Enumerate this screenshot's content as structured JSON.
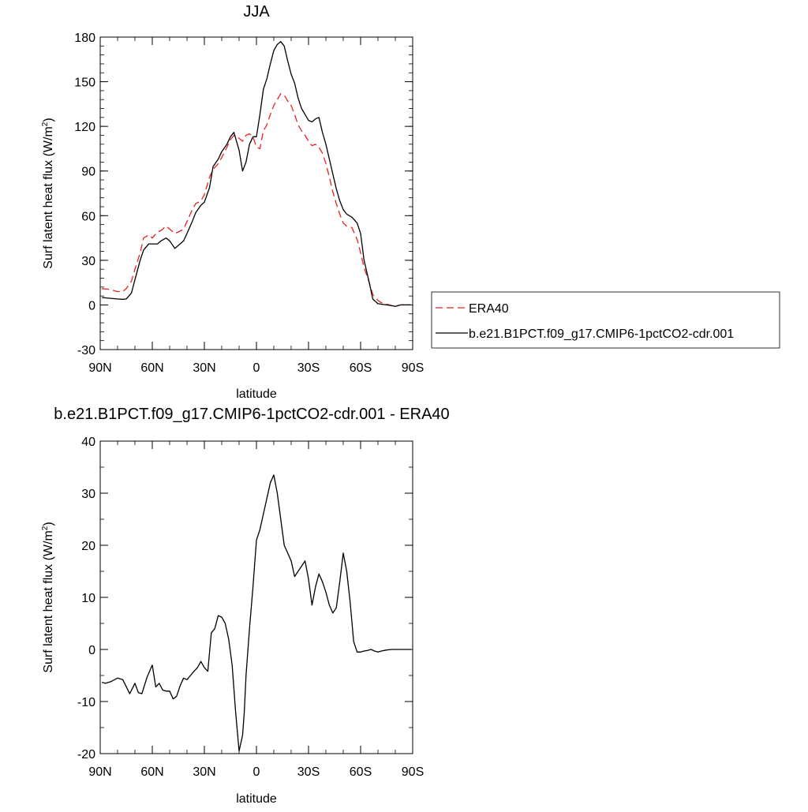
{
  "chart_data": [
    {
      "type": "line",
      "title": "JJA",
      "xlabel": "latitude",
      "ylabel": "Surf latent heat flux (W/m",
      "ylabel_sup": "2",
      "ylabel_close": ")",
      "xlim": [
        90,
        -90
      ],
      "ylim": [
        -30,
        180
      ],
      "x_ticks": [
        90,
        60,
        30,
        0,
        -30,
        -60,
        -90
      ],
      "x_tick_labels": [
        "90N",
        "60N",
        "30N",
        "0",
        "30S",
        "60S",
        "90S"
      ],
      "y_ticks": [
        -30,
        0,
        30,
        60,
        90,
        120,
        150,
        180
      ],
      "y_tick_labels": [
        "-30",
        "0",
        "30",
        "60",
        "90",
        "120",
        "150",
        "180"
      ],
      "legend_position": "right",
      "series": [
        {
          "name": "ERA40",
          "color": "#e8201e",
          "dash": "dashed",
          "x": [
            89,
            85,
            80,
            77,
            75,
            72,
            70,
            67,
            65,
            62,
            60,
            57,
            55,
            52,
            50,
            47,
            45,
            42,
            40,
            37,
            35,
            32,
            30,
            27,
            25,
            22,
            20,
            17,
            15,
            13,
            10,
            8,
            6,
            4,
            2,
            0,
            -2,
            -4,
            -6,
            -8,
            -10,
            -12,
            -14,
            -16,
            -18,
            -20,
            -22,
            -24,
            -26,
            -28,
            -30,
            -32,
            -34,
            -36,
            -38,
            -40,
            -42,
            -44,
            -46,
            -48,
            -50,
            -52,
            -55,
            -58,
            -60,
            -62,
            -65,
            -67,
            -70,
            -72,
            -75,
            -78,
            -80,
            -83,
            -86,
            -89
          ],
          "y": [
            11,
            10.5,
            9,
            9,
            11,
            16,
            24,
            35,
            45,
            47,
            45,
            49,
            50,
            53,
            51,
            48,
            49,
            51,
            56,
            64,
            68,
            70,
            74,
            86,
            91,
            95,
            99,
            106,
            111,
            114,
            112,
            110,
            114,
            115,
            113,
            106,
            105,
            117,
            121,
            128,
            134,
            138,
            142,
            141,
            137,
            134,
            128,
            121,
            117,
            114,
            110,
            107,
            108,
            106,
            102,
            95,
            86,
            76,
            68,
            61,
            55,
            53,
            52,
            44,
            35,
            25,
            15,
            7,
            3,
            1.5,
            0.5,
            -0.5,
            -1,
            0,
            0,
            0
          ]
        },
        {
          "name": "b.e21.B1PCT.f09_g17.CMIP6-1pctCO2-cdr.001",
          "color": "#000000",
          "dash": "solid",
          "x": [
            89,
            85,
            80,
            77,
            75,
            72,
            70,
            67,
            65,
            62,
            60,
            57,
            55,
            52,
            50,
            47,
            45,
            42,
            40,
            37,
            35,
            32,
            30,
            27,
            25,
            22,
            20,
            17,
            15,
            13,
            10,
            8,
            6,
            4,
            2,
            0,
            -2,
            -4,
            -6,
            -8,
            -10,
            -12,
            -14,
            -16,
            -18,
            -20,
            -22,
            -24,
            -26,
            -28,
            -30,
            -32,
            -34,
            -36,
            -38,
            -40,
            -42,
            -44,
            -46,
            -48,
            -50,
            -52,
            -55,
            -58,
            -60,
            -62,
            -65,
            -67,
            -70,
            -72,
            -75,
            -78,
            -80,
            -83,
            -86,
            -89
          ],
          "y": [
            5,
            4.5,
            4,
            3.8,
            4,
            8,
            17,
            30,
            37,
            41,
            41,
            41,
            43,
            45,
            43,
            38,
            40,
            43,
            48,
            56,
            62,
            67,
            69,
            79,
            93,
            98,
            103,
            108,
            113,
            116,
            104,
            90,
            96,
            108,
            113,
            113,
            128,
            145,
            152,
            162,
            171,
            175,
            177,
            174,
            164,
            155,
            149,
            139,
            132,
            128,
            124,
            123,
            125,
            126,
            116,
            108,
            98,
            88,
            78,
            70,
            64,
            61,
            59,
            55,
            48,
            30,
            15,
            4,
            0.8,
            0.5,
            0,
            -0.5,
            -1,
            0,
            0,
            0
          ]
        }
      ]
    },
    {
      "type": "line",
      "title": "b.e21.B1PCT.f09_g17.CMIP6-1pctCO2-cdr.001 - ERA40",
      "xlabel": "latitude",
      "ylabel": "Surf latent heat flux (W/m",
      "ylabel_sup": "2",
      "ylabel_close": ")",
      "xlim": [
        90,
        -90
      ],
      "ylim": [
        -20,
        40
      ],
      "x_ticks": [
        90,
        60,
        30,
        0,
        -30,
        -60,
        -90
      ],
      "x_tick_labels": [
        "90N",
        "60N",
        "30N",
        "0",
        "30S",
        "60S",
        "90S"
      ],
      "y_ticks": [
        -20,
        -10,
        0,
        10,
        20,
        30,
        40
      ],
      "y_tick_labels": [
        "-20",
        "-10",
        "0",
        "10",
        "20",
        "30",
        "40"
      ],
      "series": [
        {
          "color": "#000000",
          "dash": "solid",
          "x": [
            89,
            87,
            84,
            80,
            77,
            73,
            70,
            68,
            66,
            63,
            60,
            58,
            56,
            54,
            52,
            50,
            48,
            46,
            44,
            42,
            40,
            38,
            36,
            34,
            32,
            30,
            28,
            26,
            24,
            22,
            20,
            18,
            16,
            14,
            12,
            10,
            8,
            7,
            6,
            4,
            2,
            0,
            -2,
            -4,
            -6,
            -8,
            -10,
            -12,
            -14,
            -16,
            -18,
            -20,
            -22,
            -24,
            -26,
            -28,
            -30,
            -32,
            -34,
            -36,
            -38,
            -40,
            -42,
            -44,
            -46,
            -48,
            -50,
            -52,
            -54,
            -56,
            -58,
            -60,
            -62,
            -64,
            -66,
            -68,
            -70,
            -72,
            -75,
            -78,
            -80,
            -82,
            -84,
            -86,
            -89
          ],
          "y": [
            -6.3,
            -6.5,
            -6.2,
            -5.5,
            -5.8,
            -8.5,
            -6.5,
            -8.3,
            -8.5,
            -5.3,
            -3,
            -7.2,
            -6.5,
            -7.8,
            -8,
            -8,
            -9.5,
            -9,
            -7,
            -5.5,
            -5.8,
            -5,
            -4.2,
            -3.5,
            -2.3,
            -3.5,
            -4.2,
            3.2,
            4,
            6.5,
            6.2,
            5,
            2,
            -3,
            -12,
            -19.5,
            -16.5,
            -12,
            -5,
            4,
            12,
            21,
            23,
            26,
            29,
            32,
            33.5,
            30,
            25,
            20,
            18.5,
            17,
            14,
            15,
            16,
            17,
            13.5,
            8.5,
            12,
            14.5,
            13,
            11,
            8.5,
            7,
            8,
            13,
            18.5,
            15,
            9,
            1.5,
            -0.5,
            -0.5,
            -0.3,
            -0.2,
            0,
            -0.3,
            -0.5,
            -0.3,
            -0.1,
            0,
            0,
            0,
            0,
            0,
            0
          ]
        }
      ]
    }
  ]
}
